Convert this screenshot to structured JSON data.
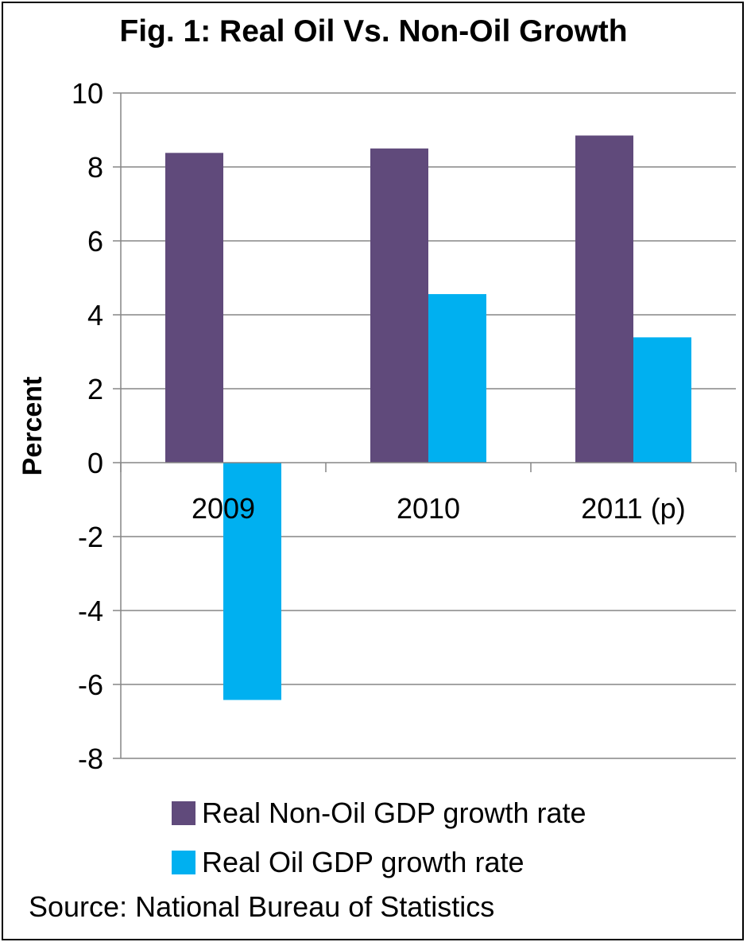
{
  "chart_data": {
    "type": "bar",
    "title": "Fig. 1: Real Oil Vs. Non-Oil Growth",
    "ylabel": "Percent",
    "xlabel": "",
    "categories": [
      "2009",
      "2010",
      "2011 (p)"
    ],
    "series": [
      {
        "name": "Real Non-Oil GDP growth rate",
        "values": [
          8.38,
          8.5,
          8.85
        ],
        "color": "#604a7b"
      },
      {
        "name": "Real Oil GDP growth rate",
        "values": [
          -6.42,
          4.56,
          3.39
        ],
        "color": "#00b0f0"
      }
    ],
    "ylim": [
      -8,
      10
    ],
    "yticks": [
      10,
      8,
      6,
      4,
      2,
      0,
      -2,
      -4,
      -6,
      -8
    ],
    "grid": true,
    "legend_position": "bottom"
  },
  "source": "Source: National Bureau of Statistics"
}
